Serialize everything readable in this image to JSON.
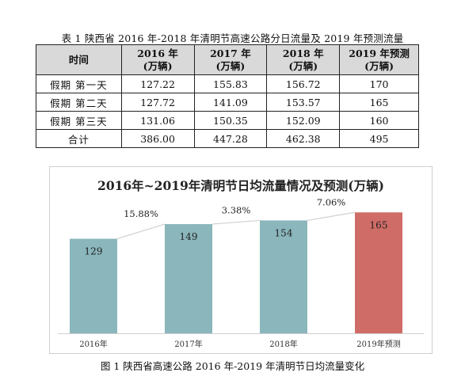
{
  "table": {
    "caption": "表 1  陕西省 2016 年-2018 年清明节高速公路分日流量及 2019 年预测流量",
    "headers": [
      {
        "line1": "时间",
        "line2": ""
      },
      {
        "line1": "2016 年",
        "line2": "(万辆)"
      },
      {
        "line1": "2017 年",
        "line2": "(万辆)"
      },
      {
        "line1": "2018 年",
        "line2": "(万辆)"
      },
      {
        "line1": "2019 年预测",
        "line2": "(万辆)"
      }
    ],
    "rows": [
      {
        "label": "假期 第一天",
        "cells": [
          "127.22",
          "155.83",
          "156.72",
          "170"
        ]
      },
      {
        "label": "假期 第二天",
        "cells": [
          "127.72",
          "141.09",
          "153.57",
          "165"
        ]
      },
      {
        "label": "假期 第三天",
        "cells": [
          "131.06",
          "150.35",
          "152.09",
          "160"
        ]
      },
      {
        "label": "合计",
        "cells": [
          "386.00",
          "447.28",
          "462.38",
          "495"
        ]
      }
    ]
  },
  "chart_data": {
    "type": "bar",
    "title": "2016年~2019年清明节日均流量情况及预测(万辆)",
    "categories": [
      "2016年",
      "2017年",
      "2018年",
      "2019年预测"
    ],
    "values": [
      129,
      149,
      154,
      165
    ],
    "value_labels": [
      "129",
      "149",
      "154",
      "165"
    ],
    "growth_labels": [
      "15.88%",
      "3.38%",
      "7.06%"
    ],
    "ylim": [
      0,
      175
    ],
    "grid": false,
    "colors": {
      "actual": "#8ab6bc",
      "forecast": "#d06c67",
      "connector": "#d0d0d0"
    }
  },
  "figure_caption": "图 1  陕西省高速公路 2016 年-2019 年清明节日均流量变化"
}
